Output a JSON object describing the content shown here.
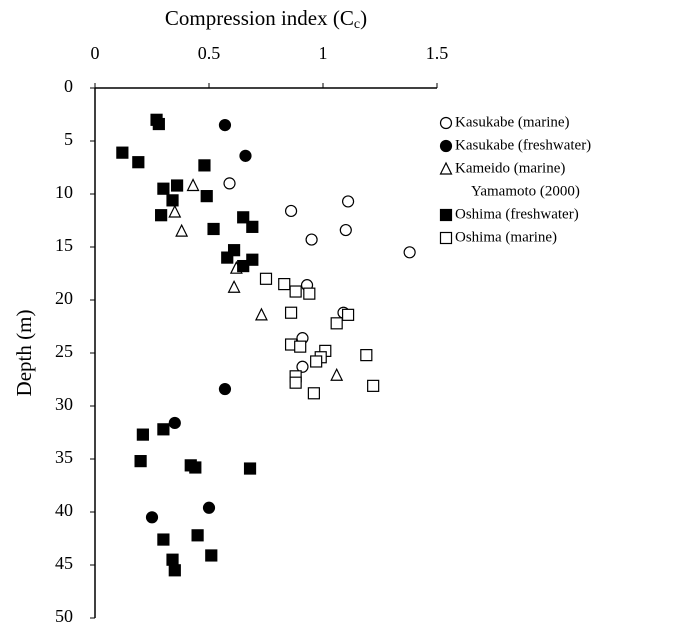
{
  "chart_data": {
    "type": "scatter",
    "x_label_parts": [
      "Compression index (C",
      "c",
      ")"
    ],
    "y_label": "Depth (m)",
    "xlim": [
      0,
      1.5
    ],
    "xticks": [
      0,
      0.5,
      1,
      1.5
    ],
    "ylim": [
      0,
      50
    ],
    "yticks": [
      0,
      5,
      10,
      15,
      20,
      25,
      30,
      35,
      40,
      45,
      50
    ],
    "y_inverted": true,
    "x_axis_top": true,
    "annotations": [
      "Yamamoto (2000)"
    ],
    "series": [
      {
        "name": "Kasukabe (marine)",
        "marker": "circle",
        "filled": false,
        "color": "#000000",
        "x": [
          0.59,
          0.86,
          1.11,
          1.1,
          0.95,
          1.38,
          0.93,
          1.09,
          0.91,
          0.91
        ],
        "y": [
          9.0,
          11.6,
          10.7,
          13.4,
          14.3,
          15.5,
          18.6,
          21.2,
          23.6,
          26.3
        ]
      },
      {
        "name": "Kasukabe (freshwater)",
        "marker": "circle",
        "filled": true,
        "color": "#000000",
        "x": [
          0.57,
          0.66,
          0.57,
          0.35,
          0.5,
          0.25
        ],
        "y": [
          3.5,
          6.4,
          28.4,
          31.6,
          39.6,
          40.5
        ]
      },
      {
        "name": "Kameido (marine)",
        "marker": "triangle",
        "filled": false,
        "color": "#000000",
        "x": [
          0.43,
          0.35,
          0.38,
          0.62,
          0.61,
          0.73,
          1.06
        ],
        "y": [
          9.2,
          11.7,
          13.5,
          17.0,
          18.8,
          21.4,
          27.1
        ]
      },
      {
        "name": "Oshima (freshwater)",
        "marker": "square",
        "filled": true,
        "color": "#000000",
        "x": [
          0.27,
          0.28,
          0.12,
          0.19,
          0.48,
          0.36,
          0.3,
          0.49,
          0.34,
          0.29,
          0.65,
          0.69,
          0.52,
          0.61,
          0.58,
          0.69,
          0.65,
          0.21,
          0.3,
          0.2,
          0.42,
          0.44,
          0.68,
          0.45,
          0.3,
          0.51,
          0.34,
          0.35
        ],
        "y": [
          3.0,
          3.4,
          6.1,
          7.0,
          7.3,
          9.2,
          9.5,
          10.2,
          10.6,
          12.0,
          12.2,
          13.1,
          13.3,
          15.3,
          16.0,
          16.2,
          16.8,
          32.7,
          32.2,
          35.2,
          35.6,
          35.8,
          35.9,
          42.2,
          42.6,
          44.1,
          44.5,
          45.5
        ]
      },
      {
        "name": "Oshima (marine)",
        "marker": "square",
        "filled": false,
        "color": "#000000",
        "x": [
          0.75,
          0.83,
          0.88,
          0.94,
          0.86,
          1.11,
          1.06,
          0.86,
          0.9,
          1.01,
          0.99,
          0.97,
          1.19,
          0.88,
          0.88,
          1.22,
          0.96
        ],
        "y": [
          18.0,
          18.5,
          19.2,
          19.4,
          21.2,
          21.4,
          22.2,
          24.2,
          24.4,
          24.8,
          25.4,
          25.8,
          25.2,
          27.2,
          27.8,
          28.1,
          28.8
        ]
      }
    ]
  }
}
